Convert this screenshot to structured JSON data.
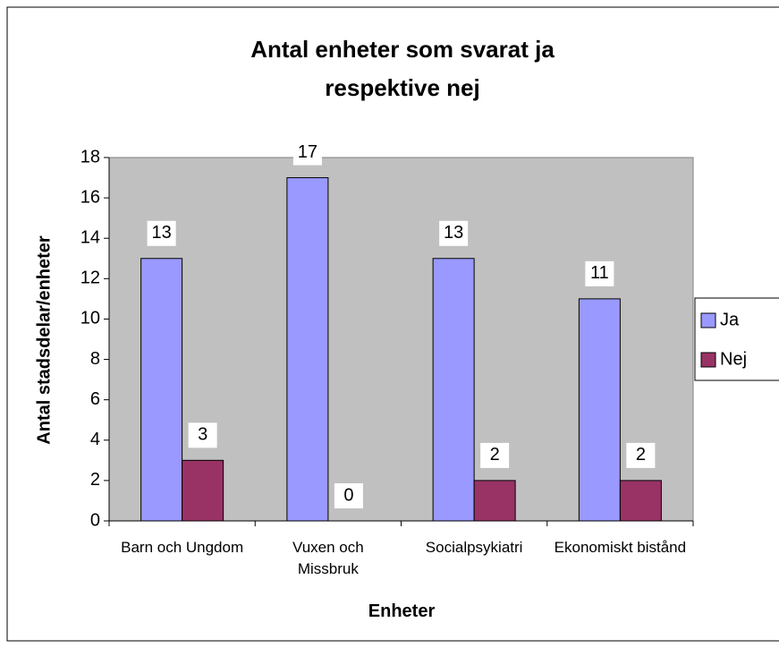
{
  "chart_data": {
    "type": "bar",
    "title": "Antal enheter som svarat ja respektive nej",
    "x_label": "Enheter",
    "y_label": "Antal stadsdelar/enheter",
    "categories": [
      "Barn och Ungdom",
      "Vuxen och Missbruk",
      "Socialpsykiatri",
      "Ekonomiskt bistånd"
    ],
    "series": [
      {
        "name": "Ja",
        "color": "#9999ff",
        "values": [
          13,
          17,
          13,
          11
        ]
      },
      {
        "name": "Nej",
        "color": "#993366",
        "values": [
          3,
          0,
          2,
          2
        ]
      }
    ],
    "ylim": [
      0,
      18
    ],
    "yticks": [
      0,
      2,
      4,
      6,
      8,
      10,
      12,
      14,
      16,
      18
    ],
    "grid": false,
    "legend": "right"
  }
}
